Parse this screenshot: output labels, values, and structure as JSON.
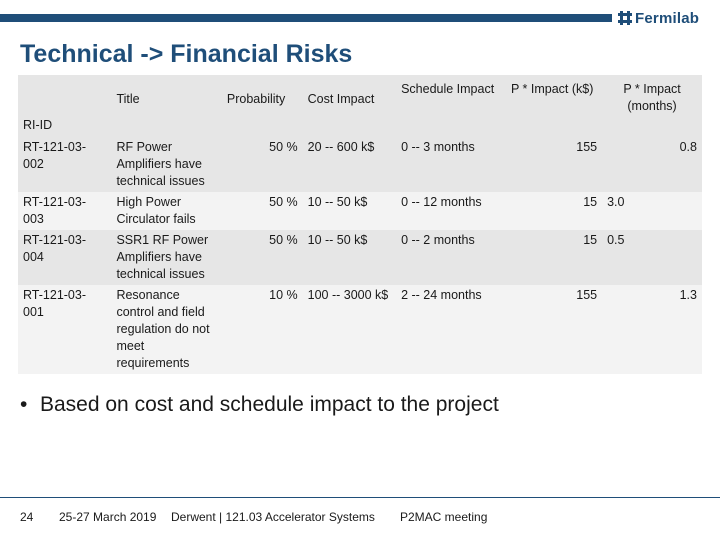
{
  "header": {
    "logo_text": "Fermilab",
    "title": "Technical -> Financial Risks"
  },
  "table": {
    "columns": [
      "RI-ID",
      "Title",
      "Probability",
      "Cost Impact",
      "Schedule Impact",
      "P * Impact (k$)",
      "P * Impact (months)"
    ],
    "rows": [
      {
        "id": "RT-121-03-002",
        "title": "RF Power Amplifiers have technical issues",
        "probability": "50 %",
        "cost": "20 -- 600 k$",
        "schedule": "0 -- 3 months",
        "p_k": "155",
        "p_m": "0.8"
      },
      {
        "id": "RT-121-03-003",
        "title": "High Power Circulator fails",
        "probability": "50 %",
        "cost": "10 -- 50 k$",
        "schedule": "0 -- 12 months",
        "p_k": "15",
        "p_m": "3.0"
      },
      {
        "id": "RT-121-03-004",
        "title": "SSR1 RF Power Amplifiers have technical issues",
        "probability": "50 %",
        "cost": "10 -- 50 k$",
        "schedule": "0 -- 2 months",
        "p_k": "15",
        "p_m": "0.5"
      },
      {
        "id": "RT-121-03-001",
        "title": "Resonance control and field regulation do not meet requirements",
        "probability": "10 %",
        "cost": "100 -- 3000 k$",
        "schedule": "2 -- 24 months",
        "p_k": "155",
        "p_m": "1.3"
      }
    ]
  },
  "bullet": {
    "symbol": "•",
    "text": "Based on cost and schedule impact to the project"
  },
  "footer": {
    "page": "24",
    "date": "25-27 March 2019",
    "presenter": "Derwent | 121.03 Accelerator Systems",
    "event": "P2MAC meeting"
  },
  "colors": {
    "brand": "#1f4e79",
    "row_dark": "#e6e6e6",
    "row_light": "#f3f3f3"
  }
}
